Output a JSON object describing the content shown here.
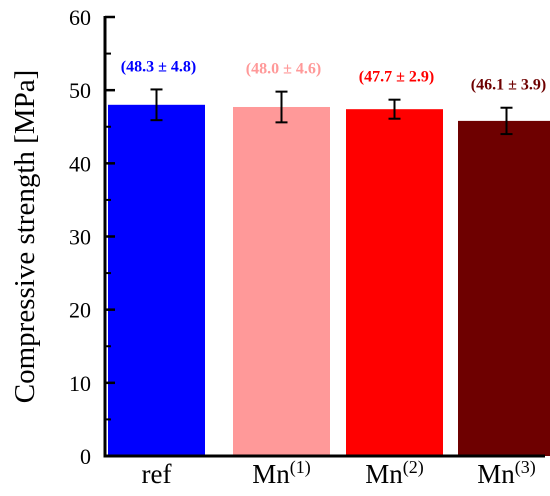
{
  "chart_data": {
    "type": "bar",
    "title": "",
    "xlabel": "",
    "ylabel": "Compressive strength [MPa]",
    "ylim": [
      0,
      60
    ],
    "yticks": [
      0,
      10,
      20,
      30,
      40,
      50,
      60
    ],
    "grid": false,
    "categories": [
      {
        "base": "ref",
        "sup": ""
      },
      {
        "base": "Mn",
        "sup": "(1)"
      },
      {
        "base": "Mn",
        "sup": "(2)"
      },
      {
        "base": "Mn",
        "sup": "(3)"
      }
    ],
    "values": [
      48.0,
      47.7,
      47.4,
      45.8
    ],
    "errors": [
      2.1,
      2.1,
      1.3,
      1.8
    ],
    "data_labels": [
      "(48.3 ± 4.8)",
      "(48.0 ± 4.6)",
      "(47.7 ± 2.9)",
      "(46.1 ± 3.9)"
    ],
    "colors": [
      "#0000ff",
      "#ff9999",
      "#ff0000",
      "#6e0000"
    ]
  }
}
